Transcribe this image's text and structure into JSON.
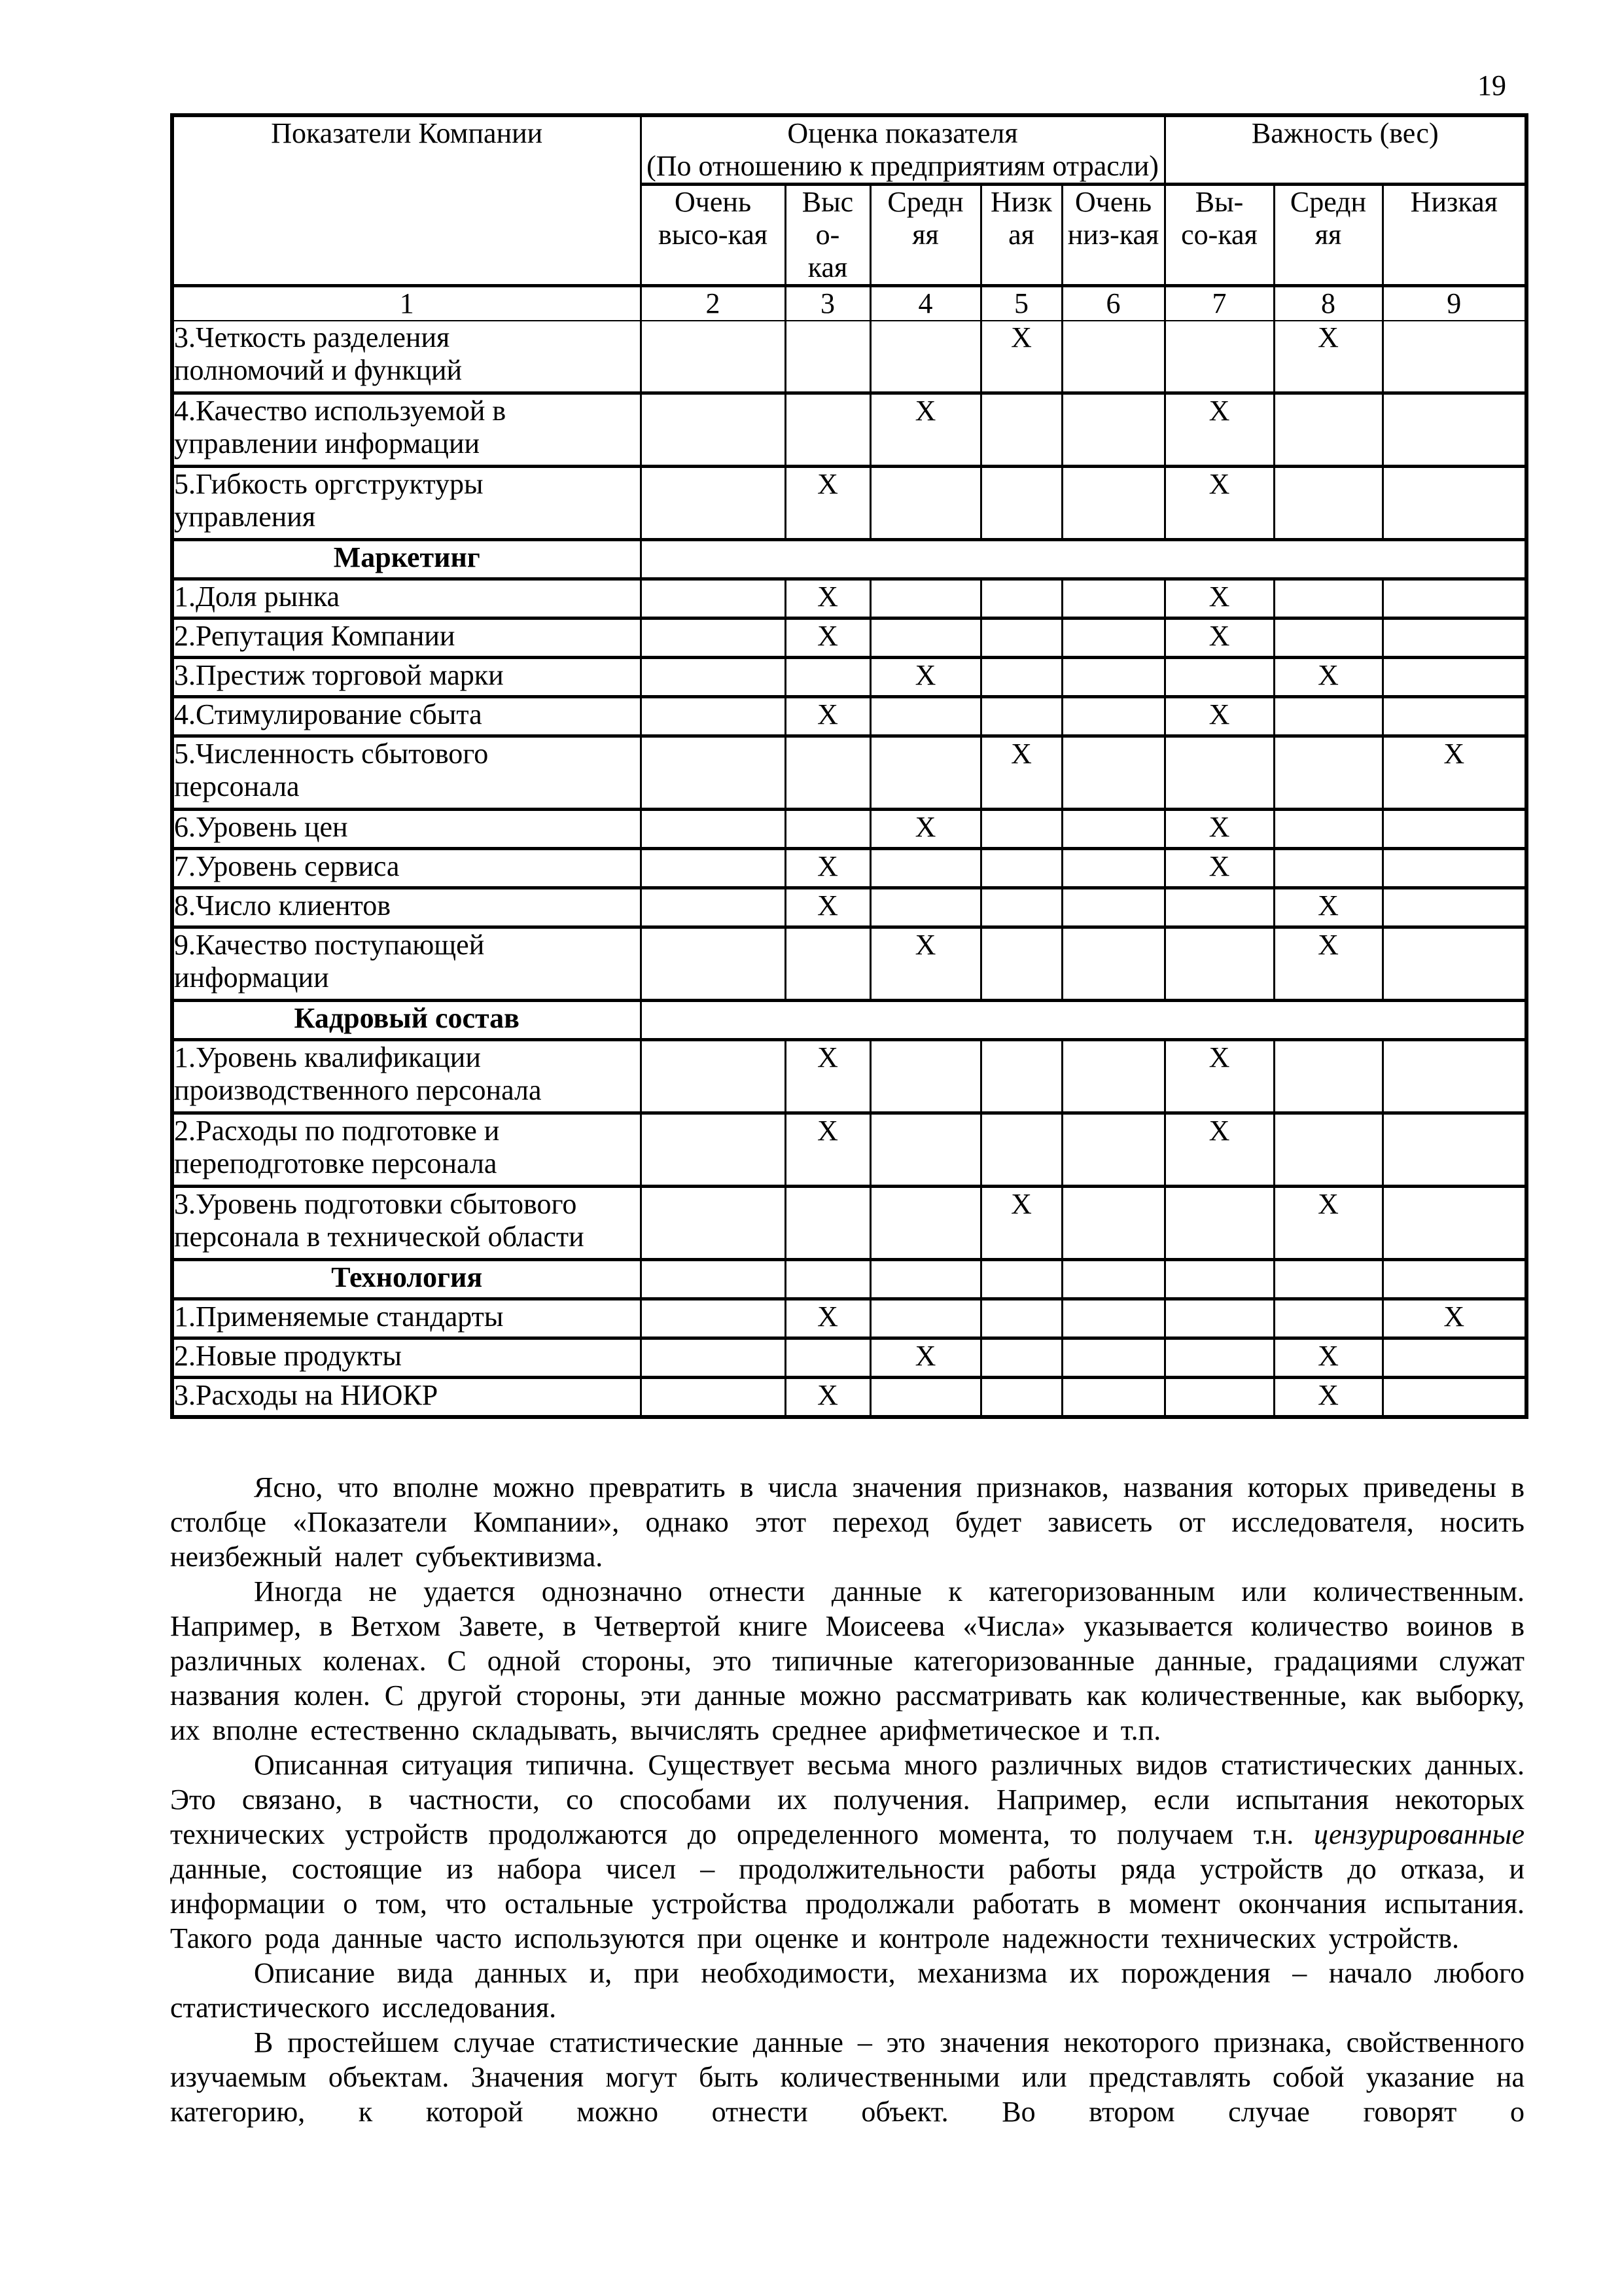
{
  "page": {
    "number": "19"
  },
  "table": {
    "col1_header": "Показатели Компании",
    "group1_header_line1": "Оценка показателя",
    "group1_header_line2": "(По отношению к предприятиям отрасли)",
    "group2_header": "Важность (вес)",
    "sub_headers": [
      "Очень\nвысо-кая",
      "Выс\nо-\nкая",
      "Средн\nяя",
      "Низк\nая",
      "Очень\nниз-кая",
      "Вы-\nсо-кая",
      "Средн\nяя",
      "Низкая"
    ],
    "number_row": [
      "1",
      "2",
      "3",
      "4",
      "5",
      "6",
      "7",
      "8",
      "9"
    ],
    "mark_char": "X",
    "rows": [
      {
        "type": "item",
        "label": "3.Четкость разделения\nполномочий и функций",
        "marks": [
          5,
          8
        ]
      },
      {
        "type": "item",
        "label": "4.Качество используемой в\nуправлении информации",
        "marks": [
          4,
          7
        ]
      },
      {
        "type": "item",
        "label": "5.Гибкость оргструктуры\nуправления",
        "marks": [
          3,
          7
        ]
      },
      {
        "type": "section",
        "label": "Маркетинг",
        "merged": true
      },
      {
        "type": "item",
        "label": "1.Доля рынка",
        "marks": [
          3,
          7
        ]
      },
      {
        "type": "item",
        "label": "2.Репутация Компании",
        "marks": [
          3,
          7
        ]
      },
      {
        "type": "item",
        "label": "3.Престиж торговой марки",
        "marks": [
          4,
          8
        ]
      },
      {
        "type": "item",
        "label": "4.Стимулирование сбыта",
        "marks": [
          3,
          7
        ]
      },
      {
        "type": "item",
        "label": "5.Численность сбытового\nперсонала",
        "marks": [
          5,
          9
        ]
      },
      {
        "type": "item",
        "label": "6.Уровень цен",
        "marks": [
          4,
          7
        ]
      },
      {
        "type": "item",
        "label": "7.Уровень сервиса",
        "marks": [
          3,
          7
        ]
      },
      {
        "type": "item",
        "label": "8.Число клиентов",
        "marks": [
          3,
          8
        ]
      },
      {
        "type": "item",
        "label": "9.Качество поступающей\nинформации",
        "marks": [
          4,
          8
        ]
      },
      {
        "type": "section",
        "label": "Кадровый состав",
        "merged": true
      },
      {
        "type": "item",
        "label": "1.Уровень квалификации\nпроизводственного персонала",
        "marks": [
          3,
          7
        ]
      },
      {
        "type": "item",
        "label": "2.Расходы по подготовке и\nпереподготовке персонала",
        "marks": [
          3,
          7
        ]
      },
      {
        "type": "item",
        "label": "3.Уровень подготовки сбытового\nперсонала в технической области",
        "marks": [
          5,
          8
        ]
      },
      {
        "type": "section",
        "label": "Технология",
        "merged": false
      },
      {
        "type": "item",
        "label": "1.Применяемые стандарты",
        "marks": [
          3,
          9
        ]
      },
      {
        "type": "item",
        "label": "2.Новые продукты",
        "marks": [
          4,
          8
        ]
      },
      {
        "type": "item",
        "label": "3.Расходы на НИОКР",
        "marks": [
          3,
          8
        ]
      }
    ]
  },
  "paragraphs": [
    {
      "segments": [
        {
          "style": "normal",
          "text": "Ясно, что вполне можно превратить в числа значения признаков, названия которых приведены в столбце «Показатели Компании», однако этот переход будет зависеть от исследователя, носить неизбежный налет субъективизма."
        }
      ]
    },
    {
      "segments": [
        {
          "style": "normal",
          "text": "Иногда не удается однозначно отнести данные к категоризованным или количественным. Например, в Ветхом Завете, в Четвертой книге Моисеева «Числа» указывается количество воинов в различных коленах. С одной стороны, это типичные категоризованные данные, градациями служат названия колен. С другой стороны, эти данные можно рассматривать как количественные, как выборку, их вполне естественно складывать, вычислять среднее арифметическое и т.п."
        }
      ]
    },
    {
      "segments": [
        {
          "style": "normal",
          "text": "Описанная ситуация типична. Существует весьма много различных видов статистических данных. Это связано, в частности, со способами их получения. Например, если испытания некоторых технических устройств продолжаются до определенного момента, то получаем т.н. "
        },
        {
          "style": "italic",
          "text": "цензурированные"
        },
        {
          "style": "normal",
          "text": " данные, состоящие из набора чисел – продолжительности работы ряда устройств до отказа, и информации о том, что остальные устройства продолжали работать в момент окончания испытания. Такого рода данные часто используются при оценке и контроле надежности технических устройств."
        }
      ]
    },
    {
      "segments": [
        {
          "style": "normal",
          "text": "Описание вида данных и, при необходимости, механизма их порождения – начало любого статистического исследования."
        }
      ]
    },
    {
      "segments": [
        {
          "style": "normal",
          "text": "В простейшем случае статистические данные – это значения некоторого признака, свойственного изучаемым объектам. Значения могут быть количественными или представлять собой указание на категорию, к которой можно отнести объект. Во втором случае говорят о"
        }
      ]
    }
  ]
}
